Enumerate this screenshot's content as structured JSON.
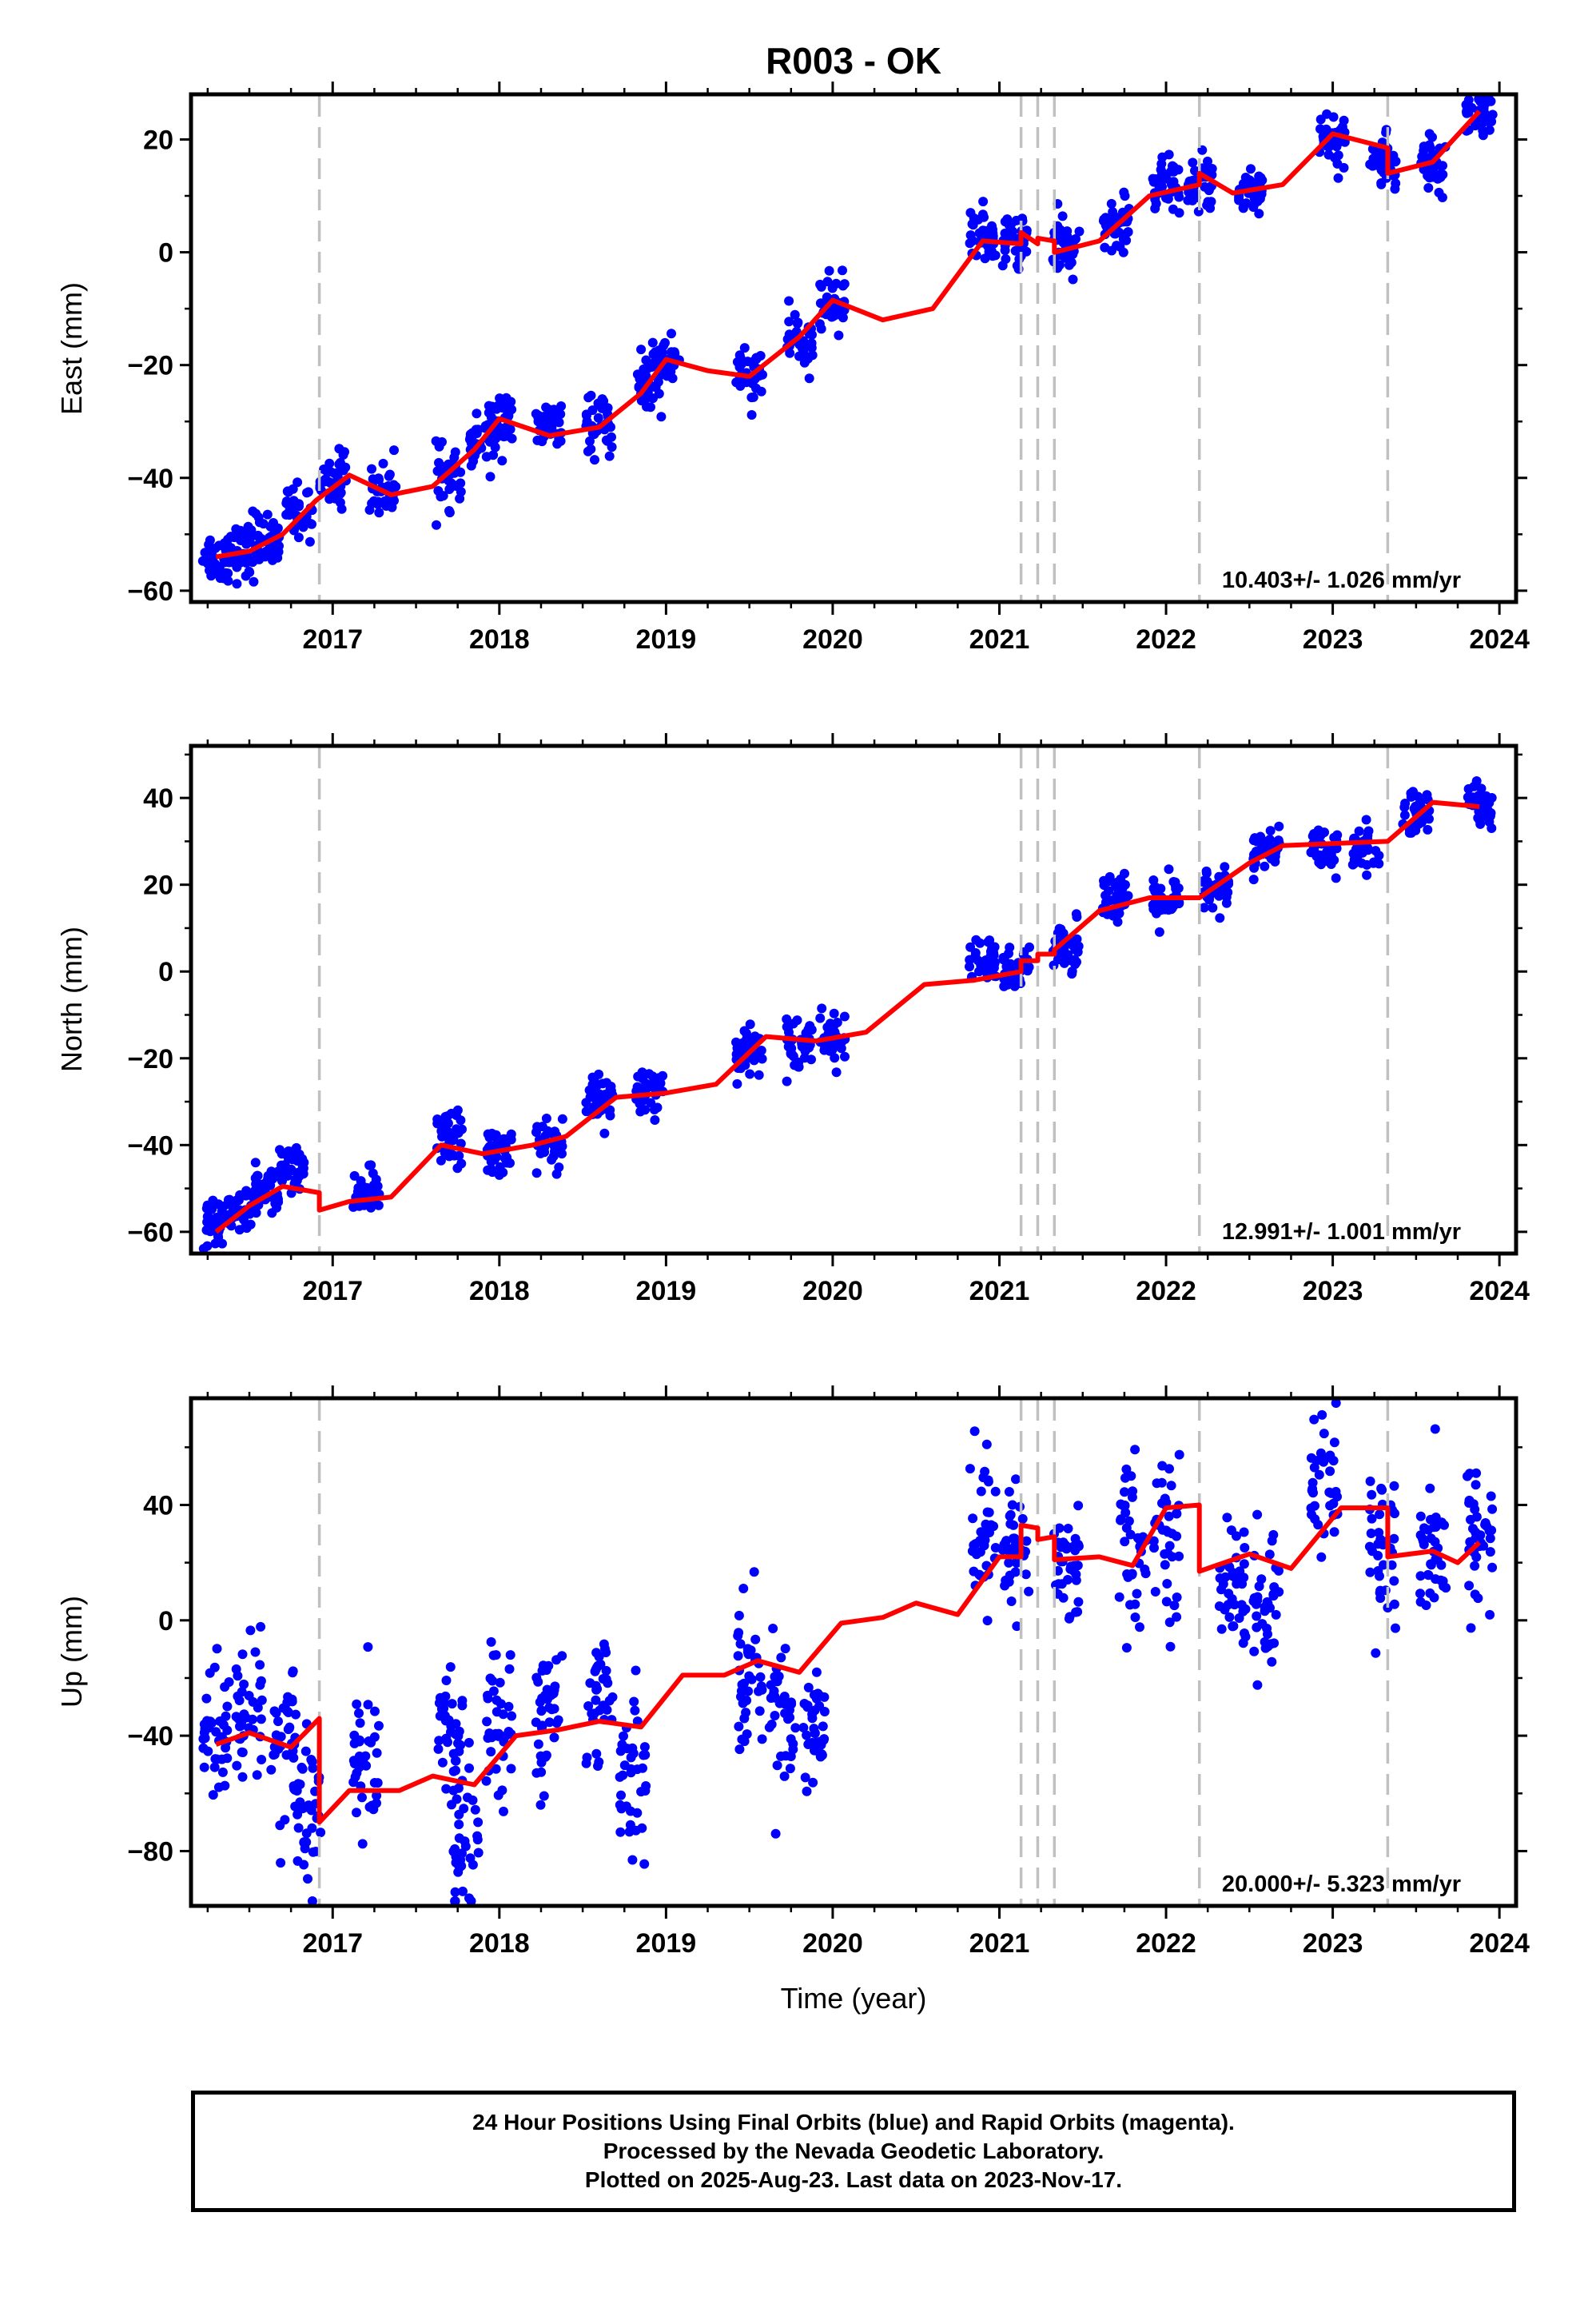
{
  "title": "R003 - OK",
  "xlabel": "Time (year)",
  "x_ticks": [
    "2017",
    "2018",
    "2019",
    "2020",
    "2021",
    "2022",
    "2023",
    "2024"
  ],
  "colors": {
    "points": "#0000ff",
    "model": "#ff0000",
    "event_lines": "#c0c0c0"
  },
  "chart_data": [
    {
      "type": "scatter",
      "panel": "east",
      "ylabel": "East (mm)",
      "ylim": [
        -62,
        28
      ],
      "xlim": [
        2016.15,
        2024.1
      ],
      "y_ticks": [
        20,
        0,
        -20,
        -40,
        -60
      ],
      "rate": "10.403+/- 1.026 mm/yr",
      "event_lines": [
        2016.92,
        2021.13,
        2021.23,
        2021.33,
        2022.2,
        2023.33
      ],
      "observations": [
        {
          "x": 2016.3,
          "y": -54
        },
        {
          "x": 2016.45,
          "y": -53
        },
        {
          "x": 2016.6,
          "y": -51
        },
        {
          "x": 2016.8,
          "y": -46
        },
        {
          "x": 2017.0,
          "y": -40
        },
        {
          "x": 2017.3,
          "y": -42
        },
        {
          "x": 2017.7,
          "y": -40
        },
        {
          "x": 2017.9,
          "y": -34
        },
        {
          "x": 2018.0,
          "y": -30
        },
        {
          "x": 2018.3,
          "y": -31
        },
        {
          "x": 2018.6,
          "y": -31
        },
        {
          "x": 2018.9,
          "y": -23
        },
        {
          "x": 2019.0,
          "y": -19
        },
        {
          "x": 2019.5,
          "y": -22
        },
        {
          "x": 2019.8,
          "y": -16
        },
        {
          "x": 2020.0,
          "y": -9
        },
        {
          "x": 2020.9,
          "y": 3
        },
        {
          "x": 2021.1,
          "y": 2
        },
        {
          "x": 2021.4,
          "y": 1
        },
        {
          "x": 2021.7,
          "y": 5
        },
        {
          "x": 2022.0,
          "y": 12
        },
        {
          "x": 2022.2,
          "y": 12
        },
        {
          "x": 2022.5,
          "y": 11
        },
        {
          "x": 2023.0,
          "y": 20
        },
        {
          "x": 2023.3,
          "y": 16
        },
        {
          "x": 2023.6,
          "y": 16
        },
        {
          "x": 2023.88,
          "y": 24
        }
      ],
      "model": [
        {
          "x": 2016.3,
          "y": -54
        },
        {
          "x": 2016.5,
          "y": -53
        },
        {
          "x": 2016.7,
          "y": -50
        },
        {
          "x": 2016.9,
          "y": -44
        },
        {
          "x": 2017.1,
          "y": -39.5
        },
        {
          "x": 2017.35,
          "y": -43
        },
        {
          "x": 2017.6,
          "y": -41.5
        },
        {
          "x": 2017.85,
          "y": -35
        },
        {
          "x": 2018.0,
          "y": -29.5
        },
        {
          "x": 2018.3,
          "y": -32.5
        },
        {
          "x": 2018.6,
          "y": -31
        },
        {
          "x": 2018.85,
          "y": -25
        },
        {
          "x": 2019.0,
          "y": -19
        },
        {
          "x": 2019.25,
          "y": -21
        },
        {
          "x": 2019.5,
          "y": -22
        },
        {
          "x": 2019.8,
          "y": -15
        },
        {
          "x": 2020.0,
          "y": -8.5
        },
        {
          "x": 2020.3,
          "y": -12
        },
        {
          "x": 2020.6,
          "y": -10
        },
        {
          "x": 2020.9,
          "y": 2
        },
        {
          "x": 2021.13,
          "y": 1.5
        },
        {
          "x": 2021.13,
          "y": 3.5
        },
        {
          "x": 2021.23,
          "y": 1.5
        },
        {
          "x": 2021.23,
          "y": 2.5
        },
        {
          "x": 2021.33,
          "y": 2
        },
        {
          "x": 2021.33,
          "y": 0
        },
        {
          "x": 2021.6,
          "y": 2
        },
        {
          "x": 2021.9,
          "y": 10
        },
        {
          "x": 2022.2,
          "y": 12
        },
        {
          "x": 2022.2,
          "y": 14
        },
        {
          "x": 2022.4,
          "y": 10.5
        },
        {
          "x": 2022.7,
          "y": 12
        },
        {
          "x": 2023.0,
          "y": 21
        },
        {
          "x": 2023.33,
          "y": 18.5
        },
        {
          "x": 2023.33,
          "y": 14
        },
        {
          "x": 2023.6,
          "y": 16
        },
        {
          "x": 2023.88,
          "y": 25
        }
      ]
    },
    {
      "type": "scatter",
      "panel": "north",
      "ylabel": "North (mm)",
      "ylim": [
        -65,
        52
      ],
      "xlim": [
        2016.15,
        2024.1
      ],
      "y_ticks": [
        40,
        20,
        0,
        -20,
        -40,
        -60
      ],
      "rate": "12.991+/- 1.001 mm/yr",
      "event_lines": [
        2016.92,
        2021.13,
        2021.23,
        2021.33,
        2022.2,
        2023.33
      ],
      "observations": [
        {
          "x": 2016.3,
          "y": -59
        },
        {
          "x": 2016.45,
          "y": -55
        },
        {
          "x": 2016.6,
          "y": -50
        },
        {
          "x": 2016.75,
          "y": -46
        },
        {
          "x": 2017.2,
          "y": -51
        },
        {
          "x": 2017.7,
          "y": -38
        },
        {
          "x": 2018.0,
          "y": -41
        },
        {
          "x": 2018.3,
          "y": -40
        },
        {
          "x": 2018.6,
          "y": -30
        },
        {
          "x": 2018.9,
          "y": -28
        },
        {
          "x": 2019.5,
          "y": -18
        },
        {
          "x": 2019.8,
          "y": -16
        },
        {
          "x": 2020.0,
          "y": -15
        },
        {
          "x": 2020.9,
          "y": 2
        },
        {
          "x": 2021.1,
          "y": 0
        },
        {
          "x": 2021.4,
          "y": 6
        },
        {
          "x": 2021.7,
          "y": 18
        },
        {
          "x": 2022.0,
          "y": 16
        },
        {
          "x": 2022.3,
          "y": 18
        },
        {
          "x": 2022.6,
          "y": 28
        },
        {
          "x": 2022.95,
          "y": 28
        },
        {
          "x": 2023.2,
          "y": 28
        },
        {
          "x": 2023.5,
          "y": 36
        },
        {
          "x": 2023.88,
          "y": 38
        }
      ],
      "model": [
        {
          "x": 2016.3,
          "y": -60
        },
        {
          "x": 2016.5,
          "y": -54
        },
        {
          "x": 2016.7,
          "y": -49.5
        },
        {
          "x": 2016.92,
          "y": -51
        },
        {
          "x": 2016.92,
          "y": -55
        },
        {
          "x": 2017.1,
          "y": -53
        },
        {
          "x": 2017.35,
          "y": -52
        },
        {
          "x": 2017.65,
          "y": -40
        },
        {
          "x": 2017.9,
          "y": -42
        },
        {
          "x": 2018.2,
          "y": -40
        },
        {
          "x": 2018.4,
          "y": -38
        },
        {
          "x": 2018.7,
          "y": -29
        },
        {
          "x": 2019.0,
          "y": -28
        },
        {
          "x": 2019.3,
          "y": -26
        },
        {
          "x": 2019.6,
          "y": -15
        },
        {
          "x": 2019.9,
          "y": -16
        },
        {
          "x": 2020.2,
          "y": -14
        },
        {
          "x": 2020.55,
          "y": -3
        },
        {
          "x": 2020.85,
          "y": -2
        },
        {
          "x": 2021.13,
          "y": 0
        },
        {
          "x": 2021.13,
          "y": 2.5
        },
        {
          "x": 2021.23,
          "y": 2.5
        },
        {
          "x": 2021.23,
          "y": 4
        },
        {
          "x": 2021.33,
          "y": 4
        },
        {
          "x": 2021.33,
          "y": 5
        },
        {
          "x": 2021.6,
          "y": 14
        },
        {
          "x": 2021.9,
          "y": 17
        },
        {
          "x": 2022.2,
          "y": 17
        },
        {
          "x": 2022.5,
          "y": 25
        },
        {
          "x": 2022.7,
          "y": 29
        },
        {
          "x": 2023.0,
          "y": 29.5
        },
        {
          "x": 2023.33,
          "y": 30
        },
        {
          "x": 2023.6,
          "y": 39
        },
        {
          "x": 2023.88,
          "y": 38
        }
      ]
    },
    {
      "type": "scatter",
      "panel": "up",
      "ylabel": "Up (mm)",
      "ylim": [
        -99,
        77
      ],
      "xlim": [
        2016.15,
        2024.1
      ],
      "y_ticks": [
        40,
        0,
        -40,
        -80
      ],
      "rate": "20.000+/- 5.323 mm/yr",
      "event_lines": [
        2016.92,
        2021.13,
        2021.23,
        2021.33,
        2022.2,
        2023.33
      ],
      "observations": [
        {
          "x": 2016.3,
          "y": -38
        },
        {
          "x": 2016.5,
          "y": -35
        },
        {
          "x": 2016.7,
          "y": -45
        },
        {
          "x": 2016.85,
          "y": -70
        },
        {
          "x": 2017.2,
          "y": -50
        },
        {
          "x": 2017.7,
          "y": -40
        },
        {
          "x": 2017.8,
          "y": -75
        },
        {
          "x": 2018.0,
          "y": -35
        },
        {
          "x": 2018.3,
          "y": -30
        },
        {
          "x": 2018.6,
          "y": -25
        },
        {
          "x": 2018.8,
          "y": -50
        },
        {
          "x": 2019.5,
          "y": -20
        },
        {
          "x": 2019.7,
          "y": -30
        },
        {
          "x": 2019.9,
          "y": -35
        },
        {
          "x": 2020.9,
          "y": 30
        },
        {
          "x": 2021.1,
          "y": 25
        },
        {
          "x": 2021.4,
          "y": 20
        },
        {
          "x": 2021.8,
          "y": 25
        },
        {
          "x": 2022.0,
          "y": 30
        },
        {
          "x": 2022.4,
          "y": 15
        },
        {
          "x": 2022.6,
          "y": 5
        },
        {
          "x": 2022.95,
          "y": 45
        },
        {
          "x": 2023.3,
          "y": 25
        },
        {
          "x": 2023.6,
          "y": 20
        },
        {
          "x": 2023.88,
          "y": 30
        }
      ],
      "model": [
        {
          "x": 2016.3,
          "y": -43
        },
        {
          "x": 2016.5,
          "y": -39
        },
        {
          "x": 2016.75,
          "y": -44
        },
        {
          "x": 2016.92,
          "y": -34
        },
        {
          "x": 2016.92,
          "y": -70
        },
        {
          "x": 2017.1,
          "y": -59
        },
        {
          "x": 2017.4,
          "y": -59
        },
        {
          "x": 2017.6,
          "y": -54
        },
        {
          "x": 2017.85,
          "y": -57
        },
        {
          "x": 2018.1,
          "y": -40
        },
        {
          "x": 2018.35,
          "y": -38
        },
        {
          "x": 2018.6,
          "y": -35
        },
        {
          "x": 2018.85,
          "y": -37
        },
        {
          "x": 2019.1,
          "y": -19
        },
        {
          "x": 2019.35,
          "y": -19
        },
        {
          "x": 2019.55,
          "y": -14
        },
        {
          "x": 2019.8,
          "y": -18
        },
        {
          "x": 2020.05,
          "y": -1
        },
        {
          "x": 2020.3,
          "y": 1
        },
        {
          "x": 2020.5,
          "y": 6
        },
        {
          "x": 2020.75,
          "y": 2
        },
        {
          "x": 2021.0,
          "y": 22
        },
        {
          "x": 2021.13,
          "y": 22
        },
        {
          "x": 2021.13,
          "y": 33
        },
        {
          "x": 2021.23,
          "y": 32
        },
        {
          "x": 2021.23,
          "y": 28
        },
        {
          "x": 2021.33,
          "y": 29
        },
        {
          "x": 2021.33,
          "y": 21
        },
        {
          "x": 2021.6,
          "y": 22
        },
        {
          "x": 2021.8,
          "y": 19
        },
        {
          "x": 2022.0,
          "y": 39
        },
        {
          "x": 2022.2,
          "y": 40
        },
        {
          "x": 2022.2,
          "y": 17
        },
        {
          "x": 2022.5,
          "y": 23
        },
        {
          "x": 2022.75,
          "y": 18
        },
        {
          "x": 2023.05,
          "y": 39
        },
        {
          "x": 2023.33,
          "y": 39
        },
        {
          "x": 2023.33,
          "y": 22
        },
        {
          "x": 2023.6,
          "y": 24
        },
        {
          "x": 2023.75,
          "y": 20
        },
        {
          "x": 2023.88,
          "y": 27
        }
      ]
    }
  ],
  "caption": {
    "line1": "24 Hour Positions Using Final Orbits (blue) and Rapid Orbits (magenta).",
    "line2": "Processed by the Nevada Geodetic Laboratory.",
    "line3": "Plotted on 2025-Aug-23. Last data on 2023-Nov-17."
  }
}
